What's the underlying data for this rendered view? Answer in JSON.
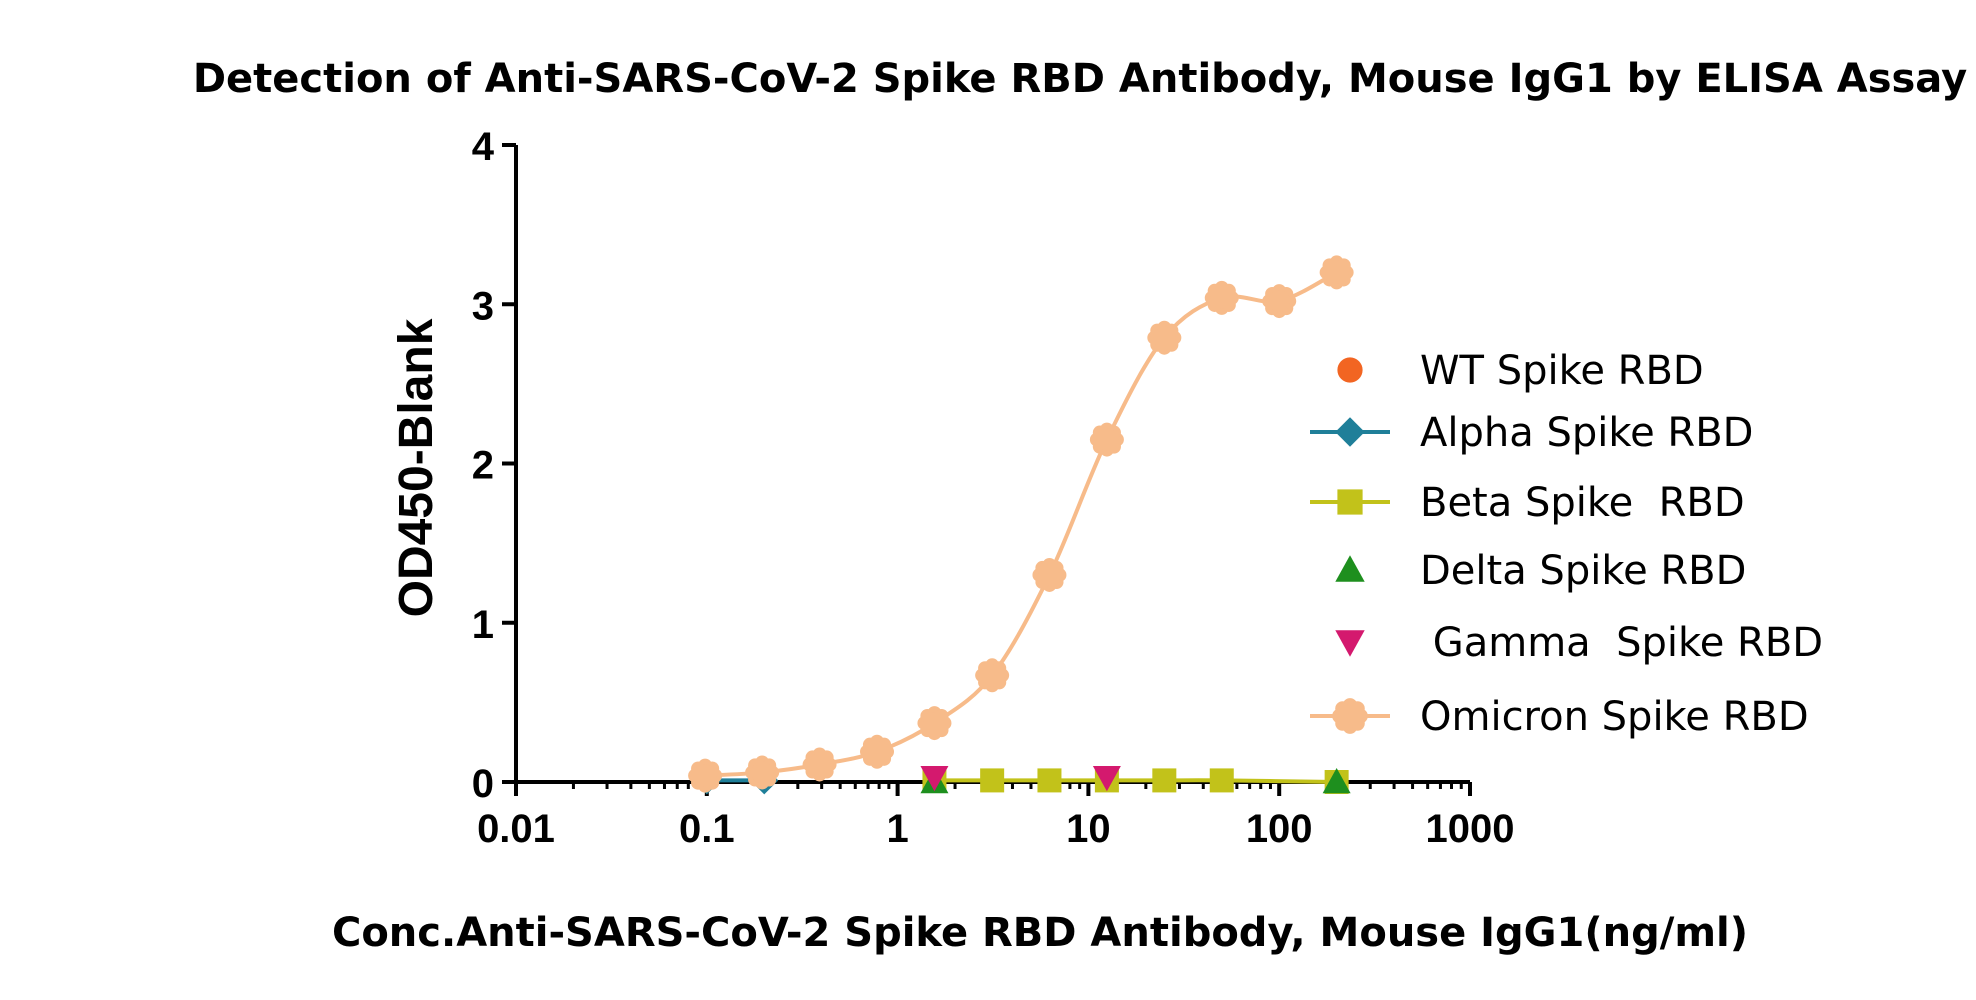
{
  "chart_data": {
    "type": "scatter",
    "title": "Detection of Anti-SARS-CoV-2 Spike RBD Antibody, Mouse IgG1 by ELISA Assay",
    "xlabel": "Conc.Anti-SARS-CoV-2 Spike RBD Antibody, Mouse IgG1(ng/ml)",
    "ylabel": "OD450-Blank",
    "x_scale": "log",
    "xlim": [
      0.01,
      1000
    ],
    "ylim": [
      0,
      4
    ],
    "x_ticks": [
      "0.01",
      "0.1",
      "1",
      "10",
      "100",
      "1000"
    ],
    "y_ticks": [
      "0",
      "1",
      "2",
      "3",
      "4"
    ],
    "grid": false,
    "legend_position": "right",
    "series": [
      {
        "name": "WT Spike RBD",
        "color": "#f26522",
        "marker": "circle",
        "line": false,
        "x": [],
        "y": []
      },
      {
        "name": "Alpha Spike RBD",
        "color": "#1f7f99",
        "marker": "diamond",
        "line": true,
        "x": [
          0.1,
          0.2
        ],
        "y": [
          0.01,
          0.01
        ]
      },
      {
        "name": "Beta Spike  RBD",
        "color": "#c2c21a",
        "marker": "square",
        "line": true,
        "x": [
          1.56,
          3.13,
          6.25,
          12.5,
          25,
          50,
          200
        ],
        "y": [
          0.01,
          0.01,
          0.01,
          0.01,
          0.01,
          0.01,
          0.0
        ]
      },
      {
        "name": "Delta Spike RBD",
        "color": "#1e8f1e",
        "marker": "triangle-up",
        "line": false,
        "x": [
          1.56,
          200
        ],
        "y": [
          0.0,
          0.0
        ]
      },
      {
        "name": " Gamma  Spike RBD",
        "color": "#d4196e",
        "marker": "triangle-down",
        "line": false,
        "x": [
          1.56,
          12.5
        ],
        "y": [
          0.03,
          0.03
        ]
      },
      {
        "name": "Omicron Spike RBD",
        "color": "#f7bb8a",
        "marker": "flower",
        "line": true,
        "x": [
          0.098,
          0.195,
          0.39,
          0.78,
          1.56,
          3.13,
          6.25,
          12.5,
          25,
          50,
          100,
          200
        ],
        "y": [
          0.04,
          0.06,
          0.11,
          0.19,
          0.37,
          0.67,
          1.3,
          2.15,
          2.79,
          3.04,
          3.02,
          3.2
        ]
      }
    ]
  }
}
